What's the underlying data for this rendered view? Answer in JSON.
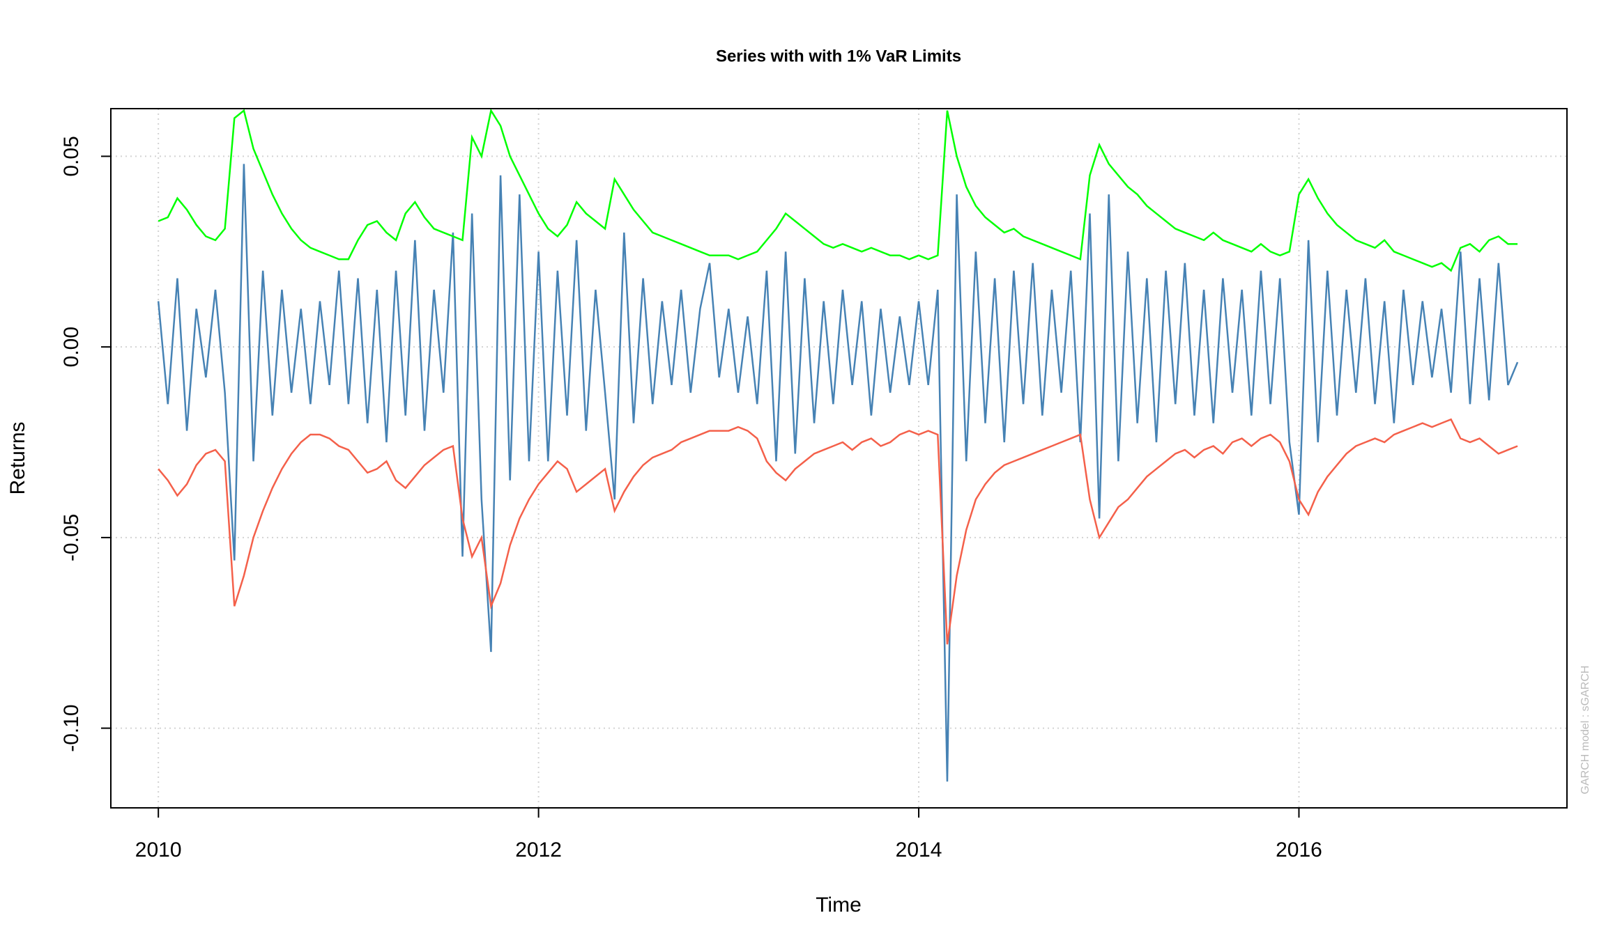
{
  "chart_data": {
    "type": "line",
    "title": "Series with with 1% VaR Limits",
    "x_label": "Time",
    "y_label": "Returns",
    "annotation": "GARCH model : sGARCH",
    "x": [
      2010.0,
      2010.05,
      2010.1,
      2010.15,
      2010.2,
      2010.25,
      2010.3,
      2010.35,
      2010.4,
      2010.45,
      2010.5,
      2010.55,
      2010.6,
      2010.65,
      2010.7,
      2010.75,
      2010.8,
      2010.85,
      2010.9,
      2010.95,
      2011.0,
      2011.05,
      2011.1,
      2011.15,
      2011.2,
      2011.25,
      2011.3,
      2011.35,
      2011.4,
      2011.45,
      2011.5,
      2011.55,
      2011.6,
      2011.65,
      2011.7,
      2011.75,
      2011.8,
      2011.85,
      2011.9,
      2011.95,
      2012.0,
      2012.05,
      2012.1,
      2012.15,
      2012.2,
      2012.25,
      2012.3,
      2012.35,
      2012.4,
      2012.45,
      2012.5,
      2012.55,
      2012.6,
      2012.65,
      2012.7,
      2012.75,
      2012.8,
      2012.85,
      2012.9,
      2012.95,
      2013.0,
      2013.05,
      2013.1,
      2013.15,
      2013.2,
      2013.25,
      2013.3,
      2013.35,
      2013.4,
      2013.45,
      2013.5,
      2013.55,
      2013.6,
      2013.65,
      2013.7,
      2013.75,
      2013.8,
      2013.85,
      2013.9,
      2013.95,
      2014.0,
      2014.05,
      2014.1,
      2014.15,
      2014.2,
      2014.25,
      2014.3,
      2014.35,
      2014.4,
      2014.45,
      2014.5,
      2014.55,
      2014.6,
      2014.65,
      2014.7,
      2014.75,
      2014.8,
      2014.85,
      2014.9,
      2014.95,
      2015.0,
      2015.05,
      2015.1,
      2015.15,
      2015.2,
      2015.25,
      2015.3,
      2015.35,
      2015.4,
      2015.45,
      2015.5,
      2015.55,
      2015.6,
      2015.65,
      2015.7,
      2015.75,
      2015.8,
      2015.85,
      2015.9,
      2015.95,
      2016.0,
      2016.05,
      2016.1,
      2016.15,
      2016.2,
      2016.25,
      2016.3,
      2016.35,
      2016.4,
      2016.45,
      2016.5,
      2016.55,
      2016.6,
      2016.65,
      2016.7,
      2016.75,
      2016.8,
      2016.85,
      2016.9,
      2016.95,
      2017.0,
      2017.05,
      2017.1,
      2017.15
    ],
    "series": [
      {
        "color": "#4682b4",
        "values": [
          0.012,
          -0.015,
          0.018,
          -0.022,
          0.01,
          -0.008,
          0.015,
          -0.012,
          -0.056,
          0.048,
          -0.03,
          0.02,
          -0.018,
          0.015,
          -0.012,
          0.01,
          -0.015,
          0.012,
          -0.01,
          0.02,
          -0.015,
          0.018,
          -0.02,
          0.015,
          -0.025,
          0.02,
          -0.018,
          0.028,
          -0.022,
          0.015,
          -0.012,
          0.03,
          -0.055,
          0.035,
          -0.04,
          -0.08,
          0.045,
          -0.035,
          0.04,
          -0.03,
          0.025,
          -0.03,
          0.02,
          -0.018,
          0.028,
          -0.022,
          0.015,
          -0.012,
          -0.04,
          0.03,
          -0.02,
          0.018,
          -0.015,
          0.012,
          -0.01,
          0.015,
          -0.012,
          0.01,
          0.022,
          -0.008,
          0.01,
          -0.012,
          0.008,
          -0.015,
          0.02,
          -0.03,
          0.025,
          -0.028,
          0.018,
          -0.02,
          0.012,
          -0.015,
          0.015,
          -0.01,
          0.012,
          -0.018,
          0.01,
          -0.012,
          0.008,
          -0.01,
          0.012,
          -0.01,
          0.015,
          -0.114,
          0.04,
          -0.03,
          0.025,
          -0.02,
          0.018,
          -0.025,
          0.02,
          -0.015,
          0.022,
          -0.018,
          0.015,
          -0.012,
          0.02,
          -0.025,
          0.035,
          -0.045,
          0.04,
          -0.03,
          0.025,
          -0.02,
          0.018,
          -0.025,
          0.02,
          -0.015,
          0.022,
          -0.018,
          0.015,
          -0.02,
          0.018,
          -0.012,
          0.015,
          -0.018,
          0.02,
          -0.015,
          0.018,
          -0.025,
          -0.044,
          0.028,
          -0.025,
          0.02,
          -0.018,
          0.015,
          -0.012,
          0.018,
          -0.015,
          0.012,
          -0.02,
          0.015,
          -0.01,
          0.012,
          -0.008,
          0.01,
          -0.012,
          0.025,
          -0.015,
          0.018,
          -0.014,
          0.022,
          -0.01,
          -0.004
        ]
      },
      {
        "color": "#00ff00",
        "values": [
          0.033,
          0.034,
          0.039,
          0.036,
          0.032,
          0.029,
          0.028,
          0.031,
          0.06,
          0.062,
          0.052,
          0.046,
          0.04,
          0.035,
          0.031,
          0.028,
          0.026,
          0.025,
          0.024,
          0.023,
          0.023,
          0.028,
          0.032,
          0.033,
          0.03,
          0.028,
          0.035,
          0.038,
          0.034,
          0.031,
          0.03,
          0.029,
          0.028,
          0.055,
          0.05,
          0.062,
          0.058,
          0.05,
          0.045,
          0.04,
          0.035,
          0.031,
          0.029,
          0.032,
          0.038,
          0.035,
          0.033,
          0.031,
          0.044,
          0.04,
          0.036,
          0.033,
          0.03,
          0.029,
          0.028,
          0.027,
          0.026,
          0.025,
          0.024,
          0.024,
          0.024,
          0.023,
          0.024,
          0.025,
          0.028,
          0.031,
          0.035,
          0.033,
          0.031,
          0.029,
          0.027,
          0.026,
          0.027,
          0.026,
          0.025,
          0.026,
          0.025,
          0.024,
          0.024,
          0.023,
          0.024,
          0.023,
          0.024,
          0.062,
          0.05,
          0.042,
          0.037,
          0.034,
          0.032,
          0.03,
          0.031,
          0.029,
          0.028,
          0.027,
          0.026,
          0.025,
          0.024,
          0.023,
          0.045,
          0.053,
          0.048,
          0.045,
          0.042,
          0.04,
          0.037,
          0.035,
          0.033,
          0.031,
          0.03,
          0.029,
          0.028,
          0.03,
          0.028,
          0.027,
          0.026,
          0.025,
          0.027,
          0.025,
          0.024,
          0.025,
          0.04,
          0.044,
          0.039,
          0.035,
          0.032,
          0.03,
          0.028,
          0.027,
          0.026,
          0.028,
          0.025,
          0.024,
          0.023,
          0.022,
          0.021,
          0.022,
          0.02,
          0.026,
          0.027,
          0.025,
          0.028,
          0.029,
          0.027,
          0.027
        ]
      },
      {
        "color": "#f4604a",
        "values": [
          -0.032,
          -0.035,
          -0.039,
          -0.036,
          -0.031,
          -0.028,
          -0.027,
          -0.03,
          -0.068,
          -0.06,
          -0.05,
          -0.043,
          -0.037,
          -0.032,
          -0.028,
          -0.025,
          -0.023,
          -0.023,
          -0.024,
          -0.026,
          -0.027,
          -0.03,
          -0.033,
          -0.032,
          -0.03,
          -0.035,
          -0.037,
          -0.034,
          -0.031,
          -0.029,
          -0.027,
          -0.026,
          -0.045,
          -0.055,
          -0.05,
          -0.068,
          -0.062,
          -0.052,
          -0.045,
          -0.04,
          -0.036,
          -0.033,
          -0.03,
          -0.032,
          -0.038,
          -0.036,
          -0.034,
          -0.032,
          -0.043,
          -0.038,
          -0.034,
          -0.031,
          -0.029,
          -0.028,
          -0.027,
          -0.025,
          -0.024,
          -0.023,
          -0.022,
          -0.022,
          -0.022,
          -0.021,
          -0.022,
          -0.024,
          -0.03,
          -0.033,
          -0.035,
          -0.032,
          -0.03,
          -0.028,
          -0.027,
          -0.026,
          -0.025,
          -0.027,
          -0.025,
          -0.024,
          -0.026,
          -0.025,
          -0.023,
          -0.022,
          -0.023,
          -0.022,
          -0.023,
          -0.078,
          -0.06,
          -0.048,
          -0.04,
          -0.036,
          -0.033,
          -0.031,
          -0.03,
          -0.029,
          -0.028,
          -0.027,
          -0.026,
          -0.025,
          -0.024,
          -0.023,
          -0.04,
          -0.05,
          -0.046,
          -0.042,
          -0.04,
          -0.037,
          -0.034,
          -0.032,
          -0.03,
          -0.028,
          -0.027,
          -0.029,
          -0.027,
          -0.026,
          -0.028,
          -0.025,
          -0.024,
          -0.026,
          -0.024,
          -0.023,
          -0.025,
          -0.03,
          -0.04,
          -0.044,
          -0.038,
          -0.034,
          -0.031,
          -0.028,
          -0.026,
          -0.025,
          -0.024,
          -0.025,
          -0.023,
          -0.022,
          -0.021,
          -0.02,
          -0.021,
          -0.02,
          -0.019,
          -0.024,
          -0.025,
          -0.024,
          -0.026,
          -0.028,
          -0.027,
          -0.026
        ]
      }
    ],
    "xlim": [
      2009.75,
      2017.41
    ],
    "xticks": [
      2010,
      2012,
      2014,
      2016
    ],
    "ylim": [
      -0.1209,
      0.0625
    ],
    "yticks": [
      0.05,
      {
        "value": 0,
        "label": "0.00"
      },
      -0.05,
      {
        "value": -0.1,
        "label": "-0.10"
      }
    ],
    "grid": true
  }
}
